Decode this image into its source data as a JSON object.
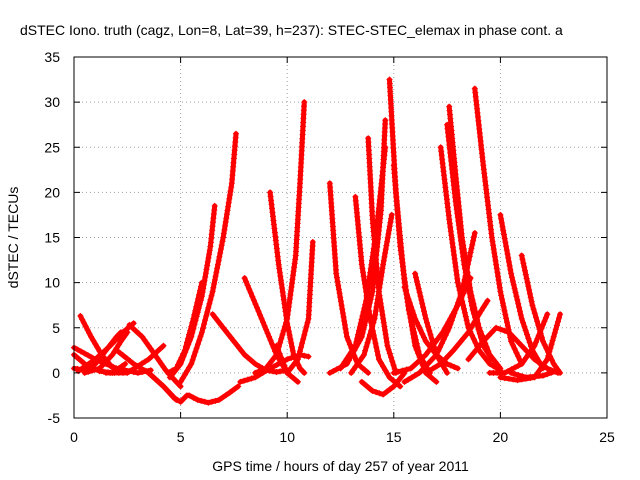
{
  "chart_data": {
    "type": "scatter",
    "title": "dSTEC Iono. truth (cagz, Lon=8, Lat=39, h=237): STEC-STEC_elemax in phase cont. a",
    "xlabel": "GPS time / hours of day 257 of year 2011",
    "ylabel": "dSTEC  / TECUs",
    "xlim": [
      0,
      25
    ],
    "ylim": [
      -5,
      35
    ],
    "xticks": [
      0,
      5,
      10,
      15,
      20,
      25
    ],
    "yticks": [
      -5,
      0,
      5,
      10,
      15,
      20,
      25,
      30,
      35
    ],
    "grid": true,
    "marker": "+",
    "color": "#ff0000",
    "series": [
      {
        "x": [
          0.3,
          0.8,
          1.3,
          1.8,
          2.1
        ],
        "y": [
          6.3,
          4.0,
          2.0,
          0.6,
          0.1
        ]
      },
      {
        "x": [
          0.0,
          1.0,
          2.0,
          3.0,
          3.6
        ],
        "y": [
          2.8,
          1.5,
          0.5,
          0.0,
          0.3
        ]
      },
      {
        "x": [
          0.0,
          0.6,
          1.2,
          1.8,
          2.4
        ],
        "y": [
          2.0,
          0.8,
          0.2,
          0.0,
          1.0
        ]
      },
      {
        "x": [
          0.2,
          1.0,
          1.7,
          2.3,
          2.8
        ],
        "y": [
          0.2,
          1.5,
          3.0,
          4.5,
          5.5
        ]
      },
      {
        "x": [
          0.0,
          0.5,
          1.0,
          1.5,
          2.0,
          2.2
        ],
        "y": [
          0.5,
          0.3,
          1.0,
          2.5,
          4.0,
          4.5
        ]
      },
      {
        "x": [
          0.5,
          1.2,
          1.8,
          2.2,
          2.5
        ],
        "y": [
          0.0,
          0.5,
          2.0,
          3.5,
          4.5
        ]
      },
      {
        "x": [
          1.5,
          2.5,
          3.5,
          4.2
        ],
        "y": [
          0.0,
          0.0,
          1.5,
          3.0
        ]
      },
      {
        "x": [
          2.6,
          3.2,
          3.8,
          4.3,
          4.8,
          5.0
        ],
        "y": [
          5.3,
          4.0,
          2.0,
          0.3,
          -1.0,
          -1.5
        ]
      },
      {
        "x": [
          2.0,
          2.8,
          3.5,
          4.2,
          4.8
        ],
        "y": [
          2.5,
          1.0,
          0.0,
          -1.5,
          -3.0
        ]
      },
      {
        "x": [
          3.5,
          4.2,
          4.7,
          5.0,
          5.3
        ],
        "y": [
          0.0,
          -1.5,
          -2.8,
          -3.2,
          -2.5
        ]
      },
      {
        "x": [
          4.4,
          4.8,
          5.2,
          5.6,
          6.0
        ],
        "y": [
          0.0,
          0.5,
          2.5,
          6.0,
          10.0
        ]
      },
      {
        "x": [
          4.5,
          5.0,
          5.5,
          6.0,
          6.4,
          6.6
        ],
        "y": [
          -0.5,
          1.0,
          4.0,
          8.5,
          14.0,
          18.5
        ]
      },
      {
        "x": [
          5.0,
          5.5,
          6.0,
          6.5,
          7.0,
          7.4,
          7.6
        ],
        "y": [
          -1.0,
          1.0,
          4.5,
          9.0,
          15.0,
          21.0,
          26.5
        ]
      },
      {
        "x": [
          5.4,
          5.8,
          6.3,
          6.8,
          7.3,
          7.7
        ],
        "y": [
          -2.5,
          -3.0,
          -3.3,
          -3.0,
          -2.2,
          -1.5
        ]
      },
      {
        "x": [
          6.5,
          7.0,
          7.5,
          8.0,
          8.5,
          9.0,
          9.5,
          10.0
        ],
        "y": [
          6.5,
          5.0,
          3.5,
          2.0,
          1.0,
          0.3,
          0.1,
          0.3
        ]
      },
      {
        "x": [
          7.8,
          8.5,
          9.2,
          10.0,
          10.6,
          11.0
        ],
        "y": [
          -1.0,
          -0.5,
          0.5,
          1.5,
          2.0,
          1.8
        ]
      },
      {
        "x": [
          8.0,
          8.8,
          9.5,
          10.0,
          10.5
        ],
        "y": [
          10.5,
          6.0,
          2.0,
          0.0,
          -1.0
        ]
      },
      {
        "x": [
          9.2,
          9.6,
          10.0,
          10.3,
          10.6,
          10.8
        ],
        "y": [
          20.0,
          12.0,
          5.5,
          2.0,
          0.5,
          0.0
        ]
      },
      {
        "x": [
          8.5,
          9.0,
          9.5,
          10.0,
          10.4,
          10.6,
          10.8
        ],
        "y": [
          0.0,
          0.5,
          2.0,
          6.0,
          13.0,
          21.0,
          30.0
        ]
      },
      {
        "x": [
          9.5,
          10.0,
          10.5,
          11.0,
          11.2
        ],
        "y": [
          3.0,
          0.0,
          1.5,
          6.0,
          14.5
        ]
      },
      {
        "x": [
          12.0,
          12.3,
          12.8,
          13.3,
          13.8
        ],
        "y": [
          21.0,
          11.0,
          4.0,
          1.0,
          0.0
        ]
      },
      {
        "x": [
          12.0,
          12.8,
          13.5,
          14.0,
          14.4,
          14.6
        ],
        "y": [
          0.0,
          1.0,
          4.0,
          9.0,
          18.0,
          28.0
        ]
      },
      {
        "x": [
          12.5,
          13.2,
          13.7,
          14.2,
          14.6
        ],
        "y": [
          0.5,
          3.0,
          8.0,
          16.0,
          25.0
        ]
      },
      {
        "x": [
          13.0,
          13.6,
          14.1,
          14.5,
          14.9
        ],
        "y": [
          0.0,
          2.0,
          6.0,
          12.0,
          17.5
        ]
      },
      {
        "x": [
          13.2,
          13.5,
          13.9,
          14.3,
          14.8,
          15.3
        ],
        "y": [
          19.5,
          12.0,
          6.0,
          1.5,
          -0.5,
          -1.5
        ]
      },
      {
        "x": [
          13.8,
          14.0,
          14.3,
          14.7,
          15.1
        ],
        "y": [
          26.0,
          17.0,
          9.0,
          3.0,
          0.0
        ]
      },
      {
        "x": [
          13.5,
          14.0,
          14.5,
          15.0,
          15.5
        ],
        "y": [
          -1.0,
          -2.0,
          -2.4,
          -1.5,
          0.0
        ]
      },
      {
        "x": [
          14.8,
          15.1,
          15.5,
          16.0,
          16.5,
          17.0
        ],
        "y": [
          32.5,
          20.0,
          10.0,
          3.0,
          0.0,
          -1.0
        ]
      },
      {
        "x": [
          15.0,
          15.3,
          15.7,
          16.2,
          16.7
        ],
        "y": [
          23.0,
          14.0,
          7.0,
          2.0,
          0.0
        ]
      },
      {
        "x": [
          15.5,
          16.0,
          16.5,
          17.0,
          17.5,
          18.0
        ],
        "y": [
          9.5,
          6.0,
          3.5,
          2.0,
          1.0,
          0.5
        ]
      },
      {
        "x": [
          15.0,
          15.8,
          16.5,
          17.3,
          18.0,
          18.6
        ],
        "y": [
          0.0,
          0.5,
          2.0,
          4.5,
          7.5,
          10.5
        ]
      },
      {
        "x": [
          15.5,
          16.2,
          17.0,
          17.6,
          18.2,
          18.8
        ],
        "y": [
          -1.0,
          0.0,
          2.0,
          5.0,
          9.0,
          15.5
        ]
      },
      {
        "x": [
          16.0,
          16.5,
          17.0,
          17.5
        ],
        "y": [
          11.0,
          6.0,
          2.0,
          0.0
        ]
      },
      {
        "x": [
          16.5,
          17.2,
          17.8,
          18.5,
          19.0,
          19.4
        ],
        "y": [
          0.0,
          1.0,
          2.5,
          4.5,
          6.5,
          8.0
        ]
      },
      {
        "x": [
          17.2,
          17.6,
          18.0,
          18.5,
          19.0,
          19.5,
          20.0
        ],
        "y": [
          25.0,
          17.0,
          10.0,
          5.0,
          2.5,
          1.0,
          0.3
        ]
      },
      {
        "x": [
          17.6,
          17.9,
          18.2,
          18.6,
          19.0,
          19.5,
          20.0
        ],
        "y": [
          29.5,
          22.0,
          15.0,
          9.0,
          5.0,
          2.0,
          0.5
        ]
      },
      {
        "x": [
          17.5,
          17.9,
          18.3,
          18.7,
          19.2,
          19.6
        ],
        "y": [
          27.5,
          19.0,
          12.0,
          7.0,
          3.0,
          1.5
        ]
      },
      {
        "x": [
          18.8,
          19.2,
          19.6,
          20.0,
          20.5,
          21.0
        ],
        "y": [
          31.5,
          23.0,
          15.0,
          9.0,
          3.5,
          1.0
        ]
      },
      {
        "x": [
          20.0,
          20.5,
          21.0,
          21.5,
          22.0
        ],
        "y": [
          17.5,
          11.0,
          6.0,
          2.5,
          0.5
        ]
      },
      {
        "x": [
          19.5,
          20.2,
          21.0,
          21.6,
          22.2
        ],
        "y": [
          0.0,
          0.0,
          1.0,
          3.0,
          6.5
        ]
      },
      {
        "x": [
          21.0,
          21.5,
          22.0,
          22.5,
          22.8
        ],
        "y": [
          13.0,
          7.5,
          3.5,
          1.0,
          0.0
        ]
      },
      {
        "x": [
          20.0,
          20.8,
          21.6,
          22.2,
          22.8
        ],
        "y": [
          -0.5,
          -0.8,
          -0.5,
          1.5,
          6.5
        ]
      },
      {
        "x": [
          18.5,
          19.2,
          19.8,
          20.4,
          21.0,
          21.6,
          22.2,
          22.7
        ],
        "y": [
          1.5,
          3.5,
          5.0,
          4.5,
          3.0,
          1.5,
          0.5,
          0.0
        ]
      },
      {
        "x": [
          20.5,
          21.2,
          22.0,
          22.6
        ],
        "y": [
          0.0,
          -0.5,
          -0.3,
          0.2
        ]
      }
    ]
  }
}
